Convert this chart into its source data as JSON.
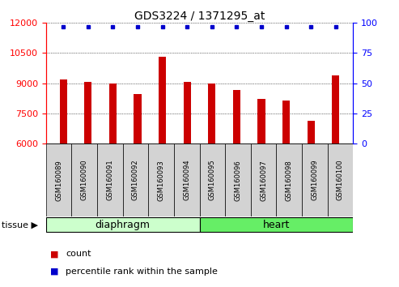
{
  "title": "GDS3224 / 1371295_at",
  "samples": [
    "GSM160089",
    "GSM160090",
    "GSM160091",
    "GSM160092",
    "GSM160093",
    "GSM160094",
    "GSM160095",
    "GSM160096",
    "GSM160097",
    "GSM160098",
    "GSM160099",
    "GSM160100"
  ],
  "counts": [
    9200,
    9050,
    9000,
    8450,
    10300,
    9050,
    9000,
    8650,
    8200,
    8150,
    7150,
    9400
  ],
  "bar_color": "#cc0000",
  "dot_color": "#0000cc",
  "ylim_left": [
    6000,
    12000
  ],
  "ylim_right": [
    0,
    100
  ],
  "yticks_left": [
    6000,
    7500,
    9000,
    10500,
    12000
  ],
  "yticks_right": [
    0,
    25,
    50,
    75,
    100
  ],
  "groups": [
    {
      "label": "diaphragm",
      "start": 0,
      "end": 6,
      "color": "#ccffcc"
    },
    {
      "label": "heart",
      "start": 6,
      "end": 12,
      "color": "#66ee66"
    }
  ],
  "legend_count_color": "#cc0000",
  "legend_dot_color": "#0000cc",
  "title_fontsize": 10,
  "tick_fontsize": 8,
  "bar_width": 0.3,
  "fig_width": 4.93,
  "fig_height": 3.54,
  "dpi": 100
}
